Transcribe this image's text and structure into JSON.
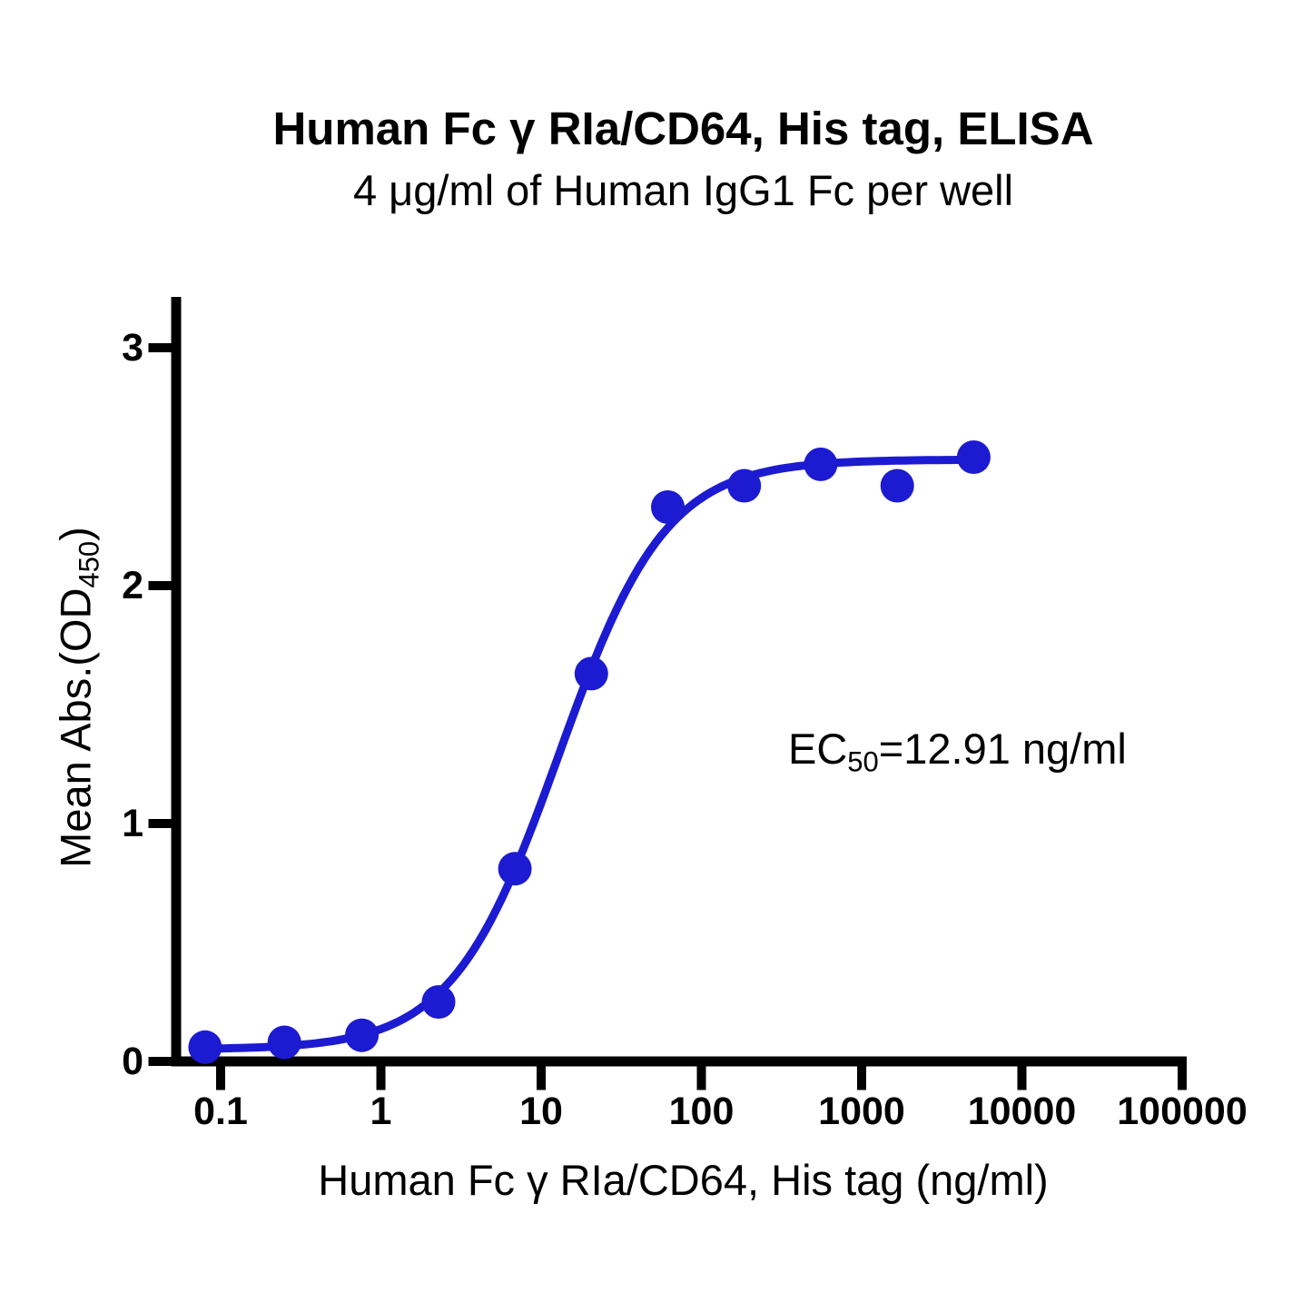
{
  "chart_data": {
    "type": "scatter",
    "title": "Human Fc γ RIa/CD64, His tag, ELISA",
    "subtitle": "4 μg/ml of Human IgG1 Fc per well",
    "xlabel": "Human Fc γ RIa/CD64, His tag (ng/ml)",
    "ylabel_main": "Mean Abs.(OD",
    "ylabel_sub": "450",
    "ylabel_end": ")",
    "x_scale": "log10",
    "x_tick_labels": [
      "0.1",
      "1",
      "10",
      "100",
      "1000",
      "10000",
      "100000"
    ],
    "x_tick_values": [
      0.1,
      1,
      10,
      100,
      1000,
      10000,
      100000
    ],
    "y_tick_labels": [
      "0",
      "1",
      "2",
      "3"
    ],
    "y_tick_values": [
      0,
      1,
      2,
      3
    ],
    "ylim": [
      0,
      3.2
    ],
    "xlim_log": [
      -1.31,
      5
    ],
    "grid": false,
    "legend": "none",
    "series": [
      {
        "name": "Human Fc γ RIa/CD64, His tag",
        "x": [
          0.08,
          0.25,
          0.76,
          2.29,
          6.86,
          20.58,
          61.73,
          185.19,
          555.56,
          1666.67,
          5000
        ],
        "y": [
          0.06,
          0.08,
          0.11,
          0.25,
          0.81,
          1.63,
          2.33,
          2.42,
          2.51,
          2.42,
          2.54
        ]
      }
    ],
    "fit_curve": {
      "model": "4PL",
      "bottom": 0.05,
      "top": 2.53,
      "ec50": 12.91,
      "hill": 1.3
    },
    "annotation": {
      "prefix": "EC",
      "sub": "50",
      "rest": "=12.91 ng/ml"
    },
    "marker_color": "#1C1BD1",
    "line_color": "#1C1BD1",
    "axis_color": "#000000",
    "text_color": "#000000"
  }
}
